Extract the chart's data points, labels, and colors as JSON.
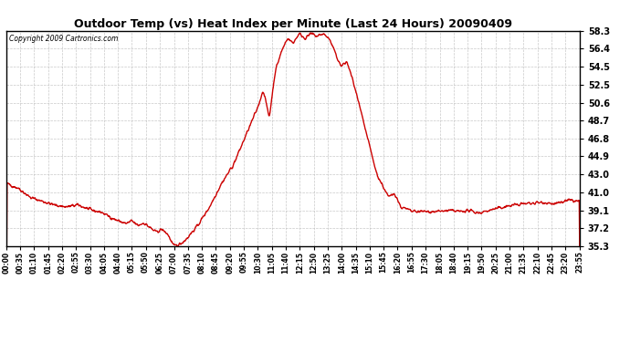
{
  "title": "Outdoor Temp (vs) Heat Index per Minute (Last 24 Hours) 20090409",
  "copyright": "Copyright 2009 Cartronics.com",
  "line_color": "#cc0000",
  "background_color": "#ffffff",
  "grid_color": "#bbbbbb",
  "yticks": [
    35.3,
    37.2,
    39.1,
    41.0,
    43.0,
    44.9,
    46.8,
    48.7,
    50.6,
    52.5,
    54.5,
    56.4,
    58.3
  ],
  "ymin": 35.3,
  "ymax": 58.3,
  "xtick_labels": [
    "00:00",
    "00:35",
    "01:10",
    "01:45",
    "02:20",
    "02:55",
    "03:30",
    "04:05",
    "04:40",
    "05:15",
    "05:50",
    "06:25",
    "07:00",
    "07:35",
    "08:10",
    "08:45",
    "09:20",
    "09:55",
    "10:30",
    "11:05",
    "11:40",
    "12:15",
    "12:50",
    "13:25",
    "14:00",
    "14:35",
    "15:10",
    "15:45",
    "16:20",
    "16:55",
    "17:30",
    "18:05",
    "18:40",
    "19:15",
    "19:50",
    "20:25",
    "21:00",
    "21:35",
    "22:10",
    "22:45",
    "23:20",
    "23:55"
  ],
  "line_width": 1.0,
  "figwidth": 6.9,
  "figheight": 3.75,
  "dpi": 100
}
